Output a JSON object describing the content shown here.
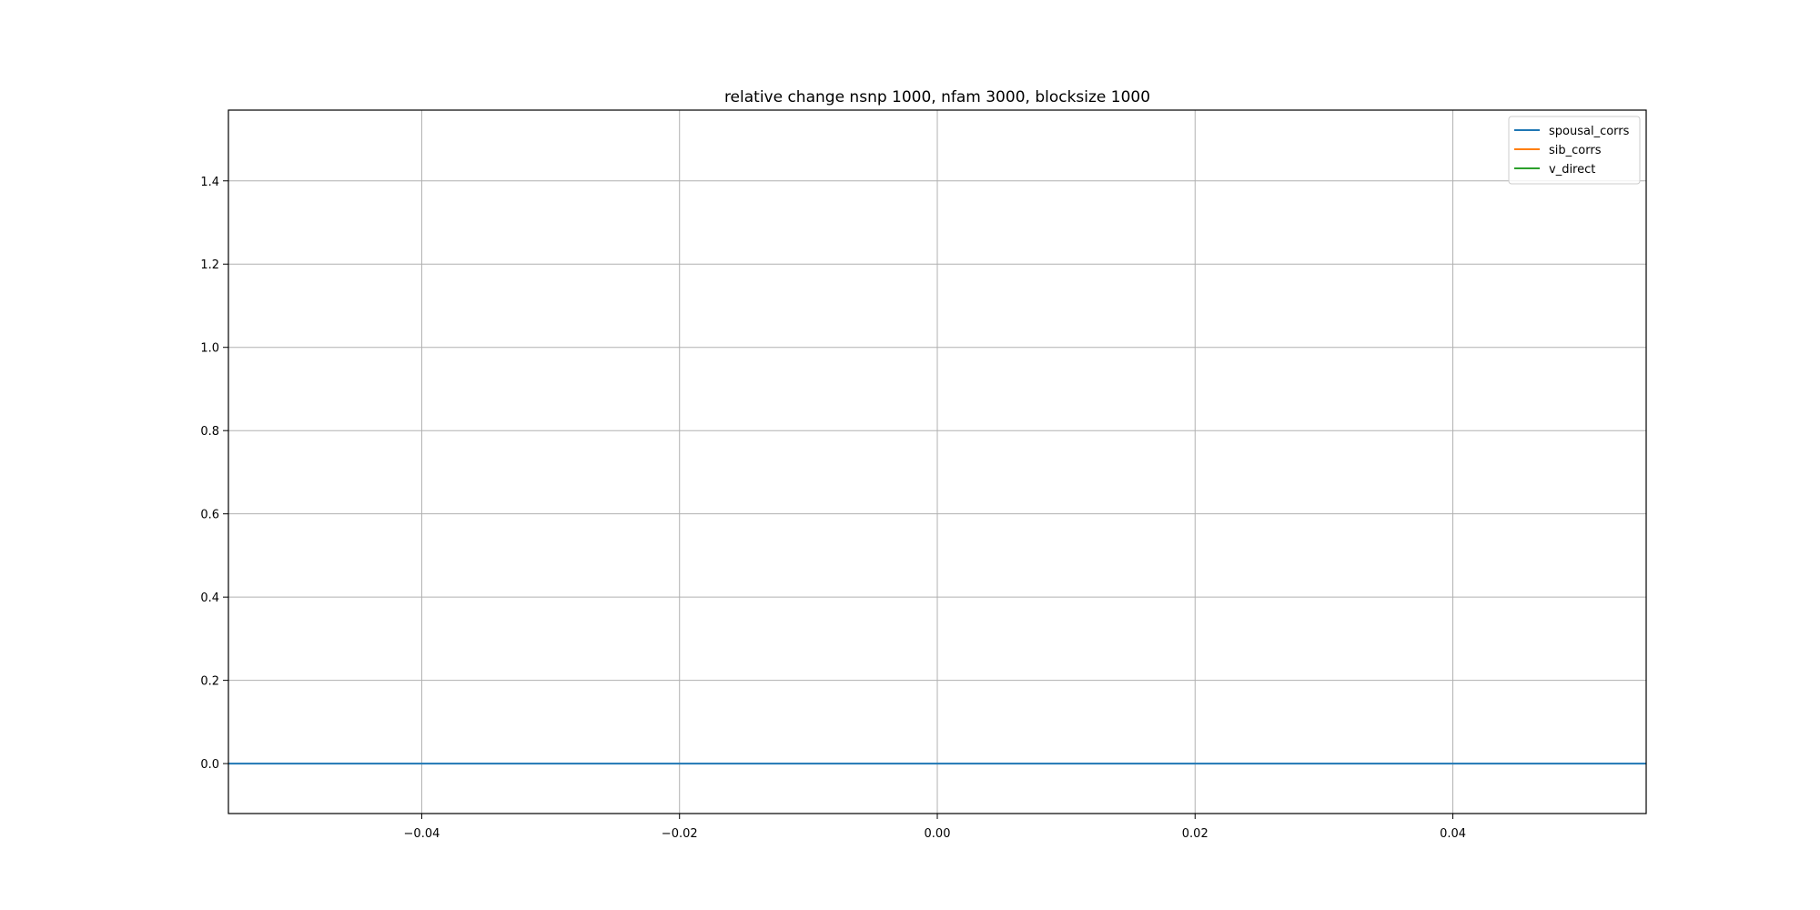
{
  "chart_data": {
    "type": "line",
    "title": "relative change nsnp 1000, nfam 3000, blocksize 1000",
    "xlabel": "",
    "ylabel": "",
    "xlim": [
      -0.055,
      0.055
    ],
    "ylim": [
      -0.12,
      1.57
    ],
    "x_ticks": [
      -0.04,
      -0.02,
      0.0,
      0.02,
      0.04
    ],
    "x_tick_labels": [
      "−0.04",
      "−0.02",
      "0.00",
      "0.02",
      "0.04"
    ],
    "y_ticks": [
      0.0,
      0.2,
      0.4,
      0.6,
      0.8,
      1.0,
      1.2,
      1.4
    ],
    "y_tick_labels": [
      "0.0",
      "0.2",
      "0.4",
      "0.6",
      "0.8",
      "1.0",
      "1.2",
      "1.4"
    ],
    "grid": true,
    "legend_position": "top-right",
    "series": [
      {
        "name": "spousal_corrs",
        "color": "#1f77b4",
        "x": [
          -0.055,
          0.055
        ],
        "y": [
          0.0,
          0.0
        ]
      },
      {
        "name": "sib_corrs",
        "color": "#ff7f0e",
        "x": [],
        "y": []
      },
      {
        "name": "v_direct",
        "color": "#2ca02c",
        "x": [],
        "y": []
      }
    ]
  }
}
